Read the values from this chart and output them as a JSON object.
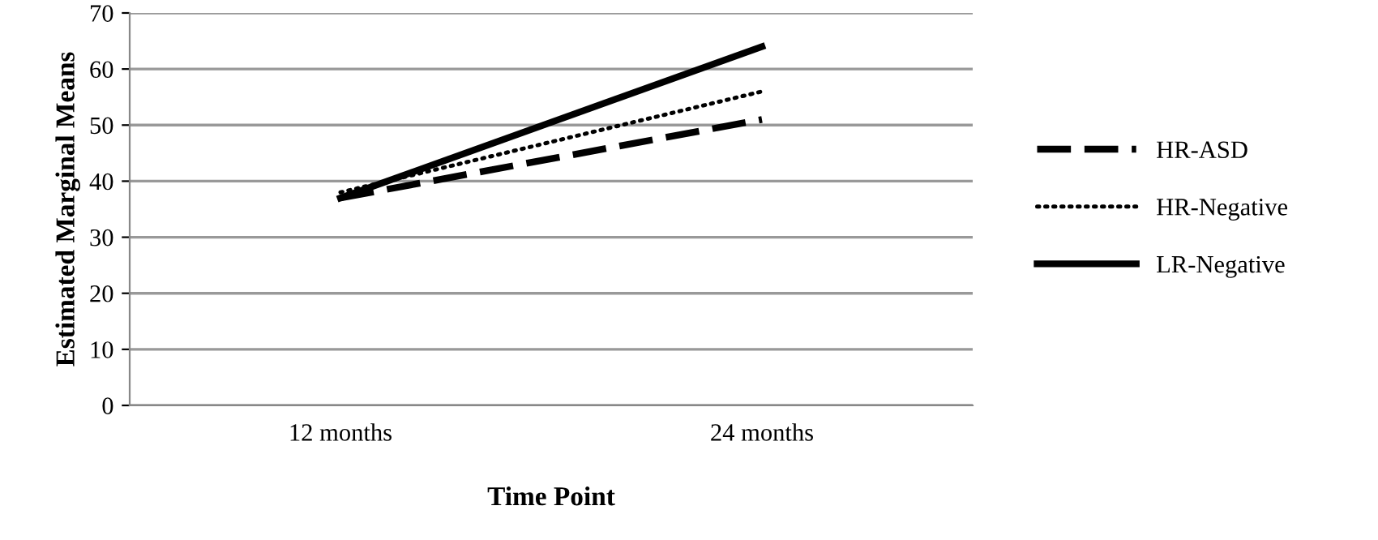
{
  "chart_data": {
    "type": "line",
    "xlabel": "Time Point",
    "ylabel": "Estimated Marginal Means",
    "categories": [
      "12 months",
      "24 months"
    ],
    "series": [
      {
        "name": "HR-ASD",
        "color": "#000000",
        "values": [
          37,
          51
        ],
        "line_style": "dashed"
      },
      {
        "name": "HR-Negative",
        "color": "#000000",
        "values": [
          38,
          56
        ],
        "line_style": "dotted"
      },
      {
        "name": "LR-Negative",
        "color": "#000000",
        "values": [
          37,
          64
        ],
        "line_style": "solid"
      }
    ],
    "ylim": [
      0,
      70
    ],
    "yticks": [
      0,
      10,
      20,
      30,
      40,
      50,
      60,
      70
    ],
    "grid": "y",
    "legend": "right"
  }
}
